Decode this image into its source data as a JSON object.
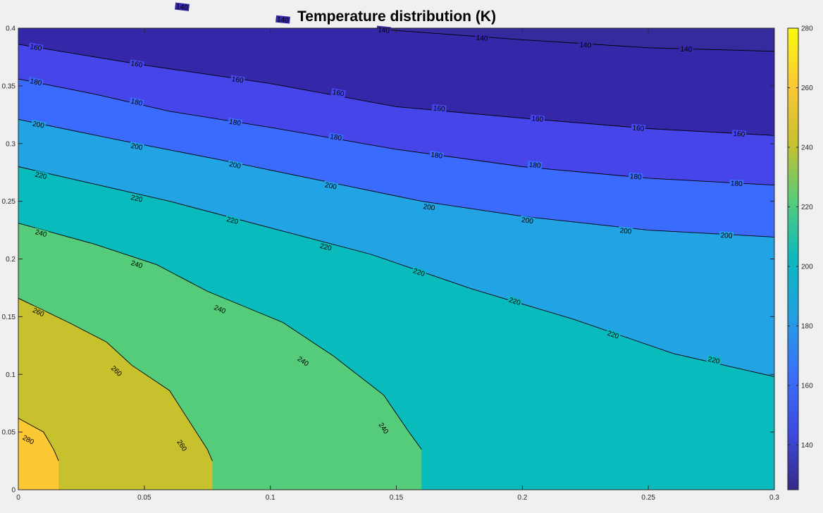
{
  "chart_data": {
    "type": "contourf",
    "title": "Temperature distribution (K)",
    "xlabel": "",
    "ylabel": "",
    "xlim": [
      0,
      0.3
    ],
    "ylim": [
      0,
      0.4
    ],
    "xticks": [
      {
        "v": 0,
        "label": "0"
      },
      {
        "v": 0.05,
        "label": "0.05"
      },
      {
        "v": 0.1,
        "label": "0.1"
      },
      {
        "v": 0.15,
        "label": "0.15"
      },
      {
        "v": 0.2,
        "label": "0.2"
      },
      {
        "v": 0.25,
        "label": "0.25"
      },
      {
        "v": 0.3,
        "label": "0.3"
      }
    ],
    "yticks": [
      {
        "v": 0,
        "label": "0"
      },
      {
        "v": 0.05,
        "label": "0.05"
      },
      {
        "v": 0.1,
        "label": "0.1"
      },
      {
        "v": 0.15,
        "label": "0.15"
      },
      {
        "v": 0.2,
        "label": "0.2"
      },
      {
        "v": 0.25,
        "label": "0.25"
      },
      {
        "v": 0.3,
        "label": "0.3"
      },
      {
        "v": 0.35,
        "label": "0.35"
      },
      {
        "v": 0.4,
        "label": "0.4"
      }
    ],
    "colorbar": {
      "range": [
        125,
        280
      ],
      "ticks": [
        {
          "v": 140,
          "label": "140"
        },
        {
          "v": 160,
          "label": "160"
        },
        {
          "v": 180,
          "label": "180"
        },
        {
          "v": 200,
          "label": "200"
        },
        {
          "v": 220,
          "label": "220"
        },
        {
          "v": 240,
          "label": "240"
        },
        {
          "v": 260,
          "label": "260"
        },
        {
          "v": 280,
          "label": "280"
        }
      ],
      "stops": [
        "#352a87",
        "#3d4be0",
        "#3a6ffb",
        "#22a0e2",
        "#0ab9c0",
        "#55cc7a",
        "#c8c12e",
        "#fcc834",
        "#f9fb0e"
      ]
    },
    "levels": [
      {
        "level": 140,
        "color": "#3528a8",
        "points": [
          [
            0.0,
            0.436
          ],
          [
            0.05,
            0.422
          ],
          [
            0.1,
            0.409
          ],
          [
            0.15,
            0.398
          ],
          [
            0.2,
            0.39
          ],
          [
            0.25,
            0.383
          ],
          [
            0.3,
            0.38
          ]
        ],
        "labels": [
          [
            0.065,
            0.4185,
            "140"
          ],
          [
            0.105,
            0.4075,
            "140"
          ],
          [
            0.145,
            0.3985,
            "140"
          ],
          [
            0.184,
            0.3915,
            "140"
          ],
          [
            0.225,
            0.3855,
            "140"
          ],
          [
            0.265,
            0.382,
            "140"
          ]
        ]
      },
      {
        "level": 160,
        "color": "#4545ea",
        "points": [
          [
            0.0,
            0.386
          ],
          [
            0.025,
            0.377
          ],
          [
            0.05,
            0.368
          ],
          [
            0.1,
            0.352
          ],
          [
            0.15,
            0.332
          ],
          [
            0.2,
            0.322
          ],
          [
            0.25,
            0.313
          ],
          [
            0.3,
            0.307
          ]
        ],
        "labels": [
          [
            0.007,
            0.3835,
            "160"
          ],
          [
            0.047,
            0.369,
            "160"
          ],
          [
            0.087,
            0.3555,
            "160"
          ],
          [
            0.127,
            0.344,
            "160"
          ],
          [
            0.167,
            0.3305,
            "160"
          ],
          [
            0.206,
            0.3215,
            "160"
          ],
          [
            0.246,
            0.3135,
            "160"
          ],
          [
            0.286,
            0.3085,
            "160"
          ]
        ]
      },
      {
        "level": 180,
        "color": "#3b6bfc",
        "points": [
          [
            0.0,
            0.356
          ],
          [
            0.03,
            0.343
          ],
          [
            0.06,
            0.328
          ],
          [
            0.1,
            0.314
          ],
          [
            0.15,
            0.295
          ],
          [
            0.2,
            0.28
          ],
          [
            0.25,
            0.27
          ],
          [
            0.3,
            0.264
          ]
        ],
        "labels": [
          [
            0.007,
            0.3535,
            "180"
          ],
          [
            0.047,
            0.336,
            "180"
          ],
          [
            0.086,
            0.3185,
            "180"
          ],
          [
            0.126,
            0.3055,
            "180"
          ],
          [
            0.166,
            0.29,
            "180"
          ],
          [
            0.205,
            0.2815,
            "180"
          ],
          [
            0.245,
            0.2715,
            "180"
          ],
          [
            0.285,
            0.2655,
            "180"
          ]
        ]
      },
      {
        "level": 200,
        "color": "#21a3e4",
        "points": [
          [
            0.0,
            0.321
          ],
          [
            0.04,
            0.303
          ],
          [
            0.08,
            0.286
          ],
          [
            0.12,
            0.268
          ],
          [
            0.16,
            0.25
          ],
          [
            0.2,
            0.237
          ],
          [
            0.25,
            0.225
          ],
          [
            0.3,
            0.219
          ]
        ],
        "labels": [
          [
            0.008,
            0.3165,
            "200"
          ],
          [
            0.047,
            0.2975,
            "200"
          ],
          [
            0.086,
            0.2815,
            "200"
          ],
          [
            0.124,
            0.2635,
            "200"
          ],
          [
            0.163,
            0.245,
            "200"
          ],
          [
            0.202,
            0.2335,
            "200"
          ],
          [
            0.241,
            0.2245,
            "200"
          ],
          [
            0.281,
            0.2205,
            "200"
          ]
        ]
      },
      {
        "level": 220,
        "color": "#09bbbd",
        "points": [
          [
            0.0,
            0.28
          ],
          [
            0.03,
            0.265
          ],
          [
            0.06,
            0.25
          ],
          [
            0.1,
            0.227
          ],
          [
            0.14,
            0.204
          ],
          [
            0.18,
            0.174
          ],
          [
            0.22,
            0.148
          ],
          [
            0.26,
            0.118
          ],
          [
            0.3,
            0.098
          ]
        ],
        "labels": [
          [
            0.009,
            0.2725,
            "220"
          ],
          [
            0.047,
            0.2525,
            "220"
          ],
          [
            0.085,
            0.2335,
            "220"
          ],
          [
            0.122,
            0.2105,
            "220"
          ],
          [
            0.159,
            0.1885,
            "220"
          ],
          [
            0.197,
            0.1635,
            "220"
          ],
          [
            0.236,
            0.1345,
            "220"
          ],
          [
            0.276,
            0.1125,
            "220"
          ]
        ]
      },
      {
        "level": 240,
        "color": "#55cc7a",
        "points": [
          [
            0.0,
            0.231
          ],
          [
            0.03,
            0.213
          ],
          [
            0.055,
            0.195
          ],
          [
            0.075,
            0.172
          ],
          [
            0.105,
            0.145
          ],
          [
            0.125,
            0.116
          ],
          [
            0.145,
            0.082
          ],
          [
            0.155,
            0.05
          ],
          [
            0.16,
            0.035
          ]
        ],
        "labels": [
          [
            0.009,
            0.2225,
            "240"
          ],
          [
            0.047,
            0.1955,
            "240"
          ],
          [
            0.08,
            0.1565,
            "240"
          ],
          [
            0.113,
            0.1115,
            "240"
          ],
          [
            0.145,
            0.0535,
            "240"
          ]
        ]
      },
      {
        "level": 260,
        "color": "#c8c12e",
        "points": [
          [
            0.0,
            0.166
          ],
          [
            0.02,
            0.145
          ],
          [
            0.035,
            0.128
          ],
          [
            0.045,
            0.108
          ],
          [
            0.06,
            0.086
          ],
          [
            0.075,
            0.035
          ],
          [
            0.077,
            0.025
          ]
        ],
        "labels": [
          [
            0.008,
            0.154,
            "260"
          ],
          [
            0.039,
            0.103,
            "260"
          ],
          [
            0.065,
            0.0385,
            "260"
          ]
        ]
      },
      {
        "level": 280,
        "color": "#fcc834",
        "points": [
          [
            0.0,
            0.062
          ],
          [
            0.01,
            0.05
          ],
          [
            0.014,
            0.035
          ],
          [
            0.016,
            0.025
          ]
        ],
        "labels": [
          [
            0.004,
            0.0435,
            "280"
          ]
        ]
      }
    ],
    "top_fill_color": "#352a9e"
  }
}
